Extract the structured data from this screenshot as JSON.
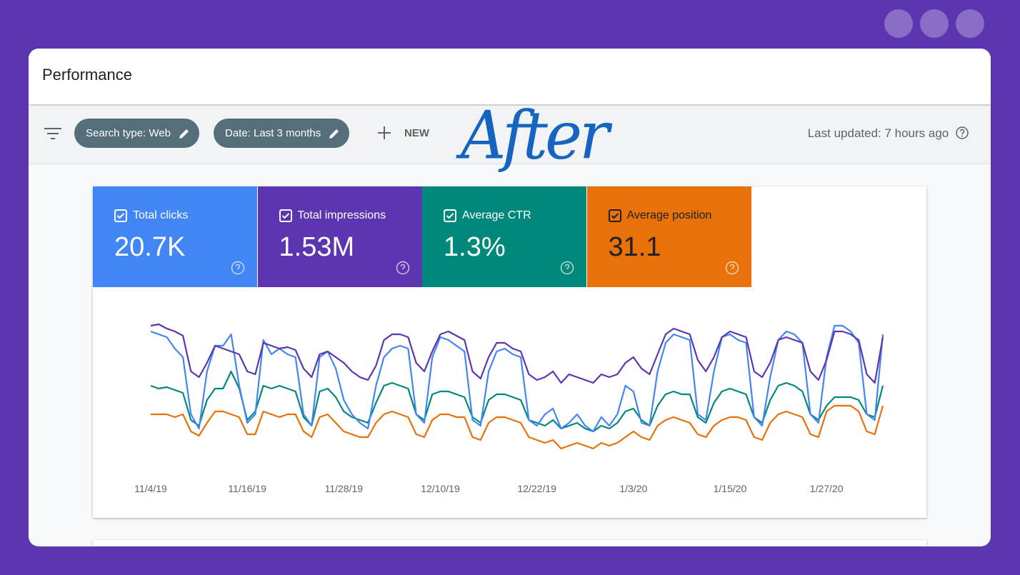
{
  "header": {
    "title": "Performance"
  },
  "toolbar": {
    "filters": [
      "Search type: Web",
      "Date: Last 3 months"
    ],
    "new_button": "NEW",
    "last_updated": "Last updated: 7 hours ago"
  },
  "annotation": "After",
  "chart_data": {
    "type": "line",
    "categories": [
      "11/4/19",
      null,
      null,
      null,
      null,
      null,
      null,
      null,
      null,
      null,
      null,
      null,
      "11/16/19",
      null,
      null,
      null,
      null,
      null,
      null,
      null,
      null,
      null,
      null,
      null,
      "11/28/19",
      null,
      null,
      null,
      null,
      null,
      null,
      null,
      null,
      null,
      null,
      null,
      "12/10/19",
      null,
      null,
      null,
      null,
      null,
      null,
      null,
      null,
      null,
      null,
      null,
      "12/22/19",
      null,
      null,
      null,
      null,
      null,
      null,
      null,
      null,
      null,
      null,
      null,
      "1/3/20",
      null,
      null,
      null,
      null,
      null,
      null,
      null,
      null,
      null,
      null,
      null,
      "1/15/20",
      null,
      null,
      null,
      null,
      null,
      null,
      null,
      null,
      null,
      null,
      null,
      "1/27/20",
      null,
      null,
      null,
      null,
      null,
      null,
      null
    ],
    "ylim": [
      0,
      100
    ],
    "series": [
      {
        "name": "Total clicks",
        "total": "20.7K",
        "color": "#4285f4",
        "text_color": "#ffffff",
        "values": [
          88,
          86,
          84,
          76,
          70,
          30,
          20,
          60,
          78,
          78,
          86,
          50,
          24,
          30,
          82,
          72,
          76,
          72,
          70,
          30,
          22,
          70,
          74,
          62,
          40,
          30,
          24,
          20,
          50,
          70,
          76,
          78,
          76,
          30,
          24,
          70,
          84,
          82,
          78,
          74,
          26,
          22,
          60,
          74,
          76,
          72,
          70,
          26,
          22,
          30,
          34,
          20,
          24,
          30,
          22,
          18,
          28,
          22,
          30,
          50,
          46,
          24,
          22,
          60,
          80,
          86,
          84,
          82,
          30,
          26,
          60,
          84,
          86,
          82,
          80,
          28,
          22,
          56,
          82,
          88,
          86,
          80,
          30,
          24,
          70,
          92,
          92,
          88,
          80,
          30,
          26,
          86
        ]
      },
      {
        "name": "Total impressions",
        "total": "1.53M",
        "color": "#5e35b1",
        "text_color": "#ffffff",
        "values": [
          92,
          93,
          90,
          88,
          85,
          60,
          56,
          66,
          78,
          76,
          74,
          72,
          60,
          58,
          80,
          78,
          76,
          77,
          75,
          62,
          56,
          72,
          74,
          70,
          66,
          60,
          56,
          54,
          64,
          82,
          86,
          86,
          84,
          66,
          60,
          74,
          86,
          88,
          85,
          82,
          60,
          55,
          70,
          80,
          80,
          76,
          74,
          58,
          54,
          56,
          60,
          52,
          58,
          56,
          54,
          52,
          58,
          56,
          58,
          66,
          70,
          62,
          58,
          72,
          86,
          90,
          88,
          86,
          68,
          60,
          70,
          84,
          88,
          86,
          84,
          60,
          56,
          66,
          82,
          84,
          82,
          80,
          60,
          54,
          68,
          88,
          88,
          86,
          82,
          58,
          52,
          84
        ]
      },
      {
        "name": "Average CTR",
        "total": "1.3%",
        "color": "#00897b",
        "text_color": "#ffffff",
        "values": [
          50,
          48,
          49,
          47,
          45,
          26,
          22,
          40,
          48,
          48,
          60,
          48,
          26,
          32,
          50,
          48,
          50,
          48,
          46,
          28,
          22,
          46,
          48,
          42,
          32,
          28,
          26,
          24,
          38,
          50,
          52,
          50,
          48,
          30,
          26,
          44,
          46,
          46,
          44,
          42,
          28,
          24,
          40,
          44,
          44,
          42,
          40,
          26,
          24,
          22,
          26,
          20,
          22,
          24,
          20,
          18,
          22,
          20,
          24,
          32,
          34,
          26,
          22,
          36,
          44,
          46,
          44,
          44,
          28,
          24,
          38,
          46,
          48,
          46,
          44,
          28,
          24,
          40,
          50,
          52,
          50,
          46,
          30,
          26,
          36,
          42,
          42,
          42,
          40,
          30,
          28,
          50
        ]
      },
      {
        "name": "Average position",
        "total": "31.1",
        "color": "#e8710a",
        "text_color": "#202124",
        "values": [
          30,
          30,
          30,
          28,
          30,
          18,
          15,
          24,
          32,
          32,
          30,
          28,
          16,
          16,
          32,
          30,
          28,
          30,
          30,
          18,
          14,
          28,
          30,
          24,
          18,
          16,
          14,
          14,
          24,
          30,
          32,
          30,
          28,
          16,
          14,
          26,
          30,
          30,
          28,
          28,
          14,
          12,
          24,
          28,
          28,
          26,
          24,
          14,
          12,
          10,
          12,
          6,
          8,
          10,
          8,
          6,
          10,
          8,
          10,
          14,
          18,
          14,
          12,
          22,
          26,
          28,
          26,
          24,
          16,
          14,
          22,
          26,
          28,
          28,
          26,
          14,
          12,
          24,
          30,
          32,
          30,
          28,
          16,
          14,
          32,
          36,
          36,
          36,
          32,
          18,
          16,
          36
        ]
      }
    ]
  }
}
